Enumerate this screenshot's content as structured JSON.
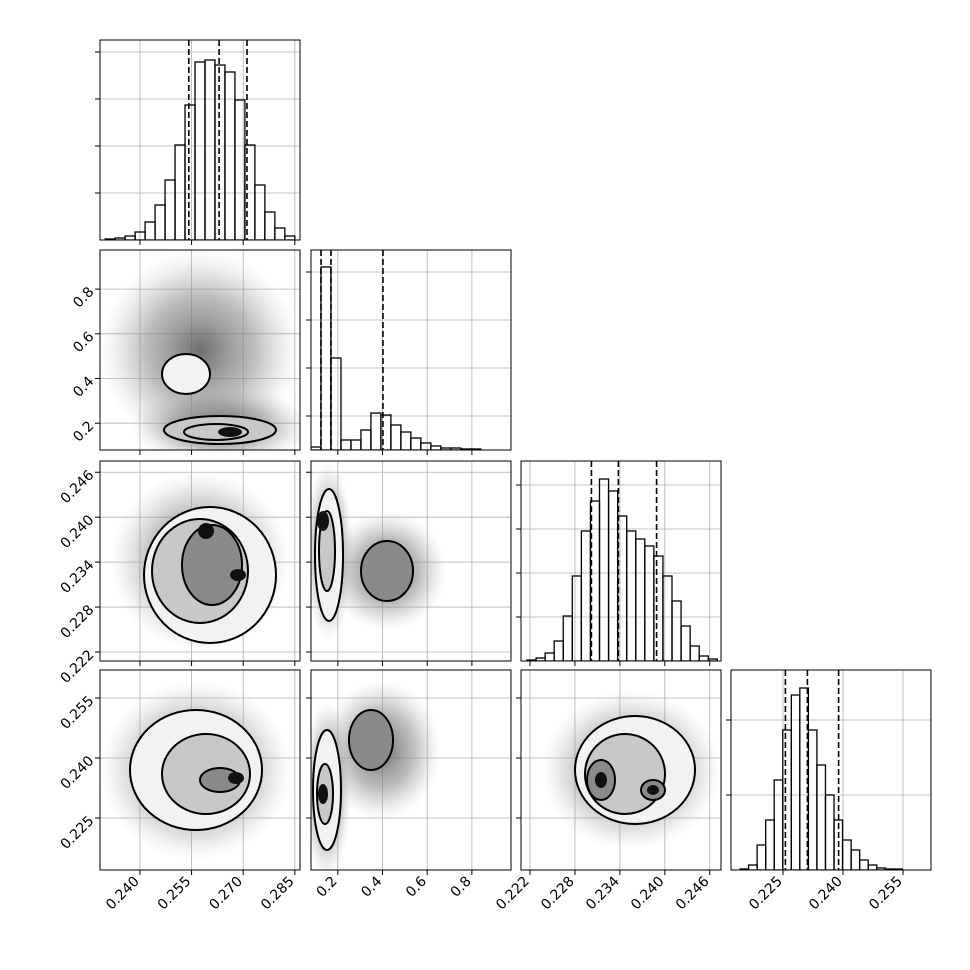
{
  "chart_data": [
    {
      "type": "histogram",
      "color": "#000000",
      "grid": true,
      "bins": [
        0.2299,
        0.2328,
        0.2357,
        0.2386,
        0.2415,
        0.2444,
        0.2473,
        0.2502,
        0.2531,
        0.256,
        0.2589,
        0.2618,
        0.2647,
        0.2676,
        0.2705,
        0.2734,
        0.2763,
        0.2792,
        0.2821,
        0.285
      ],
      "counts": [
        1,
        2,
        4,
        8,
        18,
        35,
        60,
        95,
        135,
        178,
        180,
        175,
        168,
        140,
        95,
        55,
        28,
        12,
        4
      ],
      "quantiles": [
        0.2542,
        0.263,
        0.2711
      ],
      "xlim": [
        0.2284,
        0.2865
      ],
      "ylim": [
        0,
        200
      ],
      "xticks": [
        0.24,
        0.255,
        0.27,
        0.285
      ],
      "yticks": [
        47,
        94,
        141,
        188
      ]
    },
    {
      "type": "histogram",
      "color": "#000000",
      "grid": true,
      "bins": [
        0.08,
        0.1247,
        0.1694,
        0.2141,
        0.2588,
        0.3035,
        0.3482,
        0.3929,
        0.4376,
        0.4823,
        0.527,
        0.5717,
        0.6164,
        0.6611,
        0.7058,
        0.7505,
        0.7952,
        0.8399,
        0.8846,
        0.9293,
        0.974
      ],
      "counts": [
        3,
        183,
        92,
        10,
        10,
        20,
        37,
        35,
        25,
        18,
        12,
        7,
        4,
        2,
        2,
        1,
        1,
        0,
        0,
        0
      ],
      "quantiles": [
        0.1247,
        0.1694,
        0.402
      ],
      "xlim": [
        0.08,
        0.975
      ],
      "ylim": [
        0,
        200
      ],
      "xticks": [
        0.2,
        0.4,
        0.6,
        0.8
      ],
      "yticks": [
        34,
        82,
        130,
        178
      ]
    },
    {
      "type": "histogram",
      "color": "#000000",
      "grid": true,
      "bins": [
        0.2216,
        0.22281,
        0.22402,
        0.22523,
        0.22644,
        0.22765,
        0.22886,
        0.23007,
        0.23128,
        0.23249,
        0.2337,
        0.23491,
        0.23612,
        0.23733,
        0.23854,
        0.23975,
        0.24096,
        0.24217,
        0.24338,
        0.24459,
        0.2458,
        0.24701
      ],
      "counts": [
        1,
        3,
        8,
        20,
        45,
        85,
        130,
        160,
        182,
        170,
        145,
        130,
        122,
        115,
        105,
        85,
        60,
        35,
        15,
        5,
        2
      ],
      "quantiles": [
        0.2302,
        0.2338,
        0.2389
      ],
      "xlim": [
        0.2208,
        0.2475
      ],
      "ylim": [
        0,
        200
      ],
      "xticks": [
        0.222,
        0.228,
        0.234,
        0.24,
        0.246
      ],
      "yticks": [
        44,
        88,
        132,
        176
      ]
    },
    {
      "type": "histogram",
      "color": "#000000",
      "grid": true,
      "bins": [
        0.21426,
        0.2164,
        0.21853,
        0.22067,
        0.2228,
        0.22494,
        0.22708,
        0.22921,
        0.23135,
        0.23348,
        0.23562,
        0.23776,
        0.23989,
        0.24203,
        0.24416,
        0.2463,
        0.24844,
        0.25057,
        0.25271,
        0.25484,
        0.25698
      ],
      "counts": [
        1,
        5,
        25,
        50,
        90,
        140,
        175,
        182,
        140,
        105,
        75,
        50,
        30,
        20,
        10,
        5,
        2,
        1,
        1,
        0
      ],
      "quantiles": [
        0.2256,
        0.2311,
        0.2389
      ],
      "xlim": [
        0.212,
        0.262
      ],
      "ylim": [
        0,
        200
      ],
      "xticks": [
        0.225,
        {
          "value": 0.24,
          "label": "0.240"
        },
        0.255
      ],
      "yticks": [
        75,
        150
      ]
    },
    {
      "type": "density",
      "grid": true,
      "xlim": [
        0.2284,
        0.2865
      ],
      "ylim": [
        0.08,
        0.975
      ],
      "xticks": [
        0.24,
        0.255,
        0.27,
        0.285
      ],
      "yticks": [
        0.2,
        0.4,
        0.6,
        0.8
      ]
    },
    {
      "type": "density",
      "grid": true,
      "xlim": [
        0.2284,
        0.2865
      ],
      "ylim": [
        0.2208,
        0.2475
      ],
      "xticks": [
        0.24,
        0.255,
        0.27,
        0.285
      ],
      "yticks": [
        0.222,
        0.228,
        0.234,
        {
          "value": 0.24,
          "label": "0.240"
        },
        0.246
      ]
    },
    {
      "type": "density",
      "grid": true,
      "xlim": [
        0.08,
        0.975
      ],
      "ylim": [
        0.2208,
        0.2475
      ],
      "xticks": [
        0.2,
        0.4,
        0.6,
        0.8
      ],
      "yticks": [
        0.222,
        0.228,
        0.234,
        0.24,
        0.246
      ]
    },
    {
      "type": "density",
      "grid": true,
      "xlim": [
        0.2284,
        0.2865
      ],
      "ylim": [
        0.212,
        0.262
      ],
      "xticks": [
        {
          "value": 0.24,
          "label": "0.240"
        },
        0.255,
        {
          "value": 0.27,
          "label": "0.270"
        },
        0.285
      ],
      "yticks": [
        0.225,
        {
          "value": 0.24,
          "label": "0.240"
        },
        0.255
      ]
    },
    {
      "type": "density",
      "grid": true,
      "xlim": [
        0.08,
        0.975
      ],
      "ylim": [
        0.212,
        0.262
      ],
      "xticks": [
        0.2,
        0.4,
        0.6,
        0.8
      ],
      "yticks": [
        0.225,
        0.24,
        0.255
      ]
    },
    {
      "type": "density",
      "grid": true,
      "xlim": [
        0.2208,
        0.2475
      ],
      "ylim": [
        0.212,
        0.262
      ],
      "xticks": [
        0.222,
        0.228,
        0.234,
        {
          "value": 0.24,
          "label": "0.240"
        },
        0.246
      ],
      "yticks": [
        0.225,
        0.24,
        0.255
      ]
    }
  ]
}
